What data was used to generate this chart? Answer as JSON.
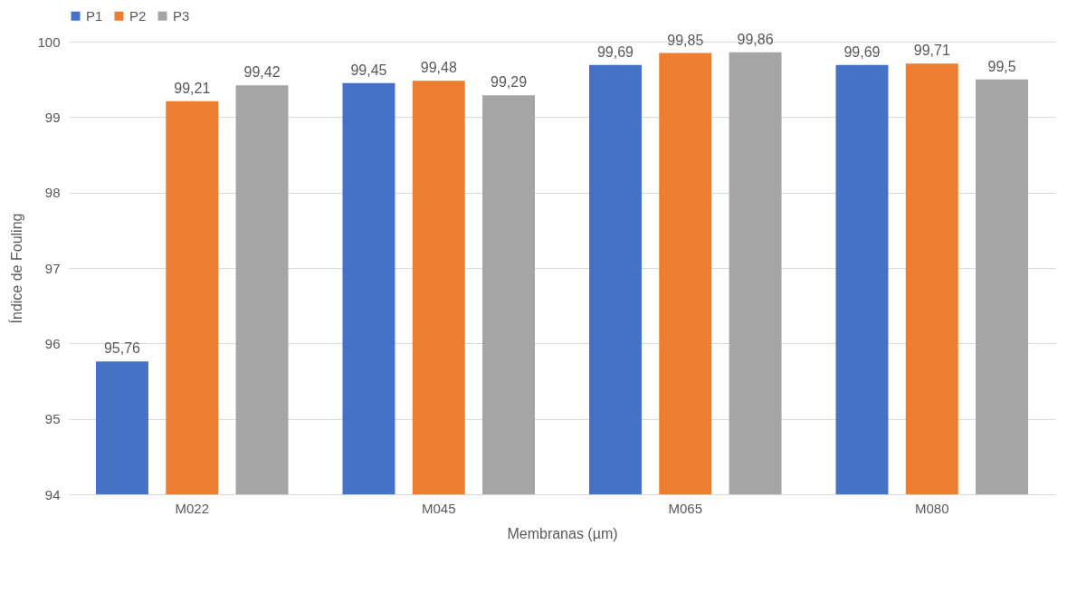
{
  "chart_data": {
    "type": "bar",
    "xlabel": "Membranas (µm)",
    "ylabel": "Índice de Fouling",
    "categories": [
      "M022",
      "M045",
      "M065",
      "M080"
    ],
    "series": [
      {
        "name": "P1",
        "color": "#4472c4",
        "values": [
          95.76,
          99.45,
          99.69,
          99.69
        ],
        "value_labels": [
          "95,76",
          "99,45",
          "99,69",
          "99,69"
        ]
      },
      {
        "name": "P2",
        "color": "#ed7d31",
        "values": [
          99.21,
          99.48,
          99.85,
          99.71
        ],
        "value_labels": [
          "99,21",
          "99,48",
          "99,85",
          "99,71"
        ]
      },
      {
        "name": "P3",
        "color": "#a5a5a5",
        "values": [
          99.42,
          99.29,
          99.86,
          99.5
        ],
        "value_labels": [
          "99,42",
          "99,29",
          "99,86",
          "99,5"
        ]
      }
    ],
    "ylim": [
      94,
      100
    ],
    "yticks": [
      94,
      95,
      96,
      97,
      98,
      99,
      100
    ],
    "grid": "y",
    "legend": "top"
  }
}
